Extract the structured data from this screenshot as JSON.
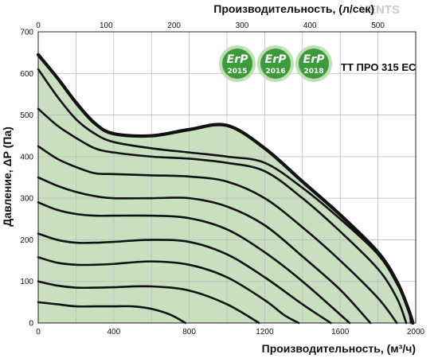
{
  "watermark": "VENTS",
  "model_label": "ТТ ПРО 315 ЕС",
  "badges": [
    {
      "text": "ErP",
      "year": "2015"
    },
    {
      "text": "ErP",
      "year": "2016"
    },
    {
      "text": "ErP",
      "year": "2018"
    }
  ],
  "colors": {
    "fill": "#c8dfc0",
    "curve": "#111111",
    "badge_green": "#3c9a3c",
    "badge_ring": "#bfe0b2",
    "grid": "#bdbdbd"
  },
  "chart_data": {
    "type": "line",
    "title": "",
    "xlabel": "Производительность, (м³/ч)",
    "ylabel": "Давление, ΔP (Па)",
    "x2label": "Производительность, (л/сек)",
    "xlim": [
      0,
      2000
    ],
    "ylim": [
      0,
      700
    ],
    "x2lim": [
      0,
      555.6
    ],
    "xticks": [
      0,
      400,
      800,
      1200,
      1600,
      2000
    ],
    "xminor": [
      200,
      600,
      1000,
      1400,
      1800
    ],
    "yticks": [
      0,
      100,
      200,
      300,
      400,
      500,
      600,
      700
    ],
    "x2ticks": [
      0,
      100,
      200,
      300,
      400,
      500
    ],
    "grid": true,
    "shaded_area": true,
    "series": [
      {
        "x": [
          0,
          100,
          200,
          300,
          400,
          600,
          800,
          1000,
          1200,
          1400,
          1600,
          1800,
          1900,
          1960,
          1985
        ],
        "y": [
          645,
          590,
          530,
          480,
          455,
          450,
          465,
          475,
          420,
          340,
          260,
          170,
          100,
          35,
          0
        ]
      },
      {
        "x": [
          0,
          100,
          200,
          300,
          400,
          600,
          800,
          1000,
          1200,
          1400,
          1600,
          1800,
          1900,
          1960,
          1975
        ],
        "y": [
          610,
          545,
          490,
          455,
          435,
          420,
          410,
          400,
          385,
          325,
          250,
          165,
          95,
          35,
          0
        ]
      },
      {
        "x": [
          0,
          100,
          200,
          300,
          400,
          600,
          800,
          1000,
          1200,
          1400,
          1600,
          1800,
          1900,
          1950
        ],
        "y": [
          515,
          475,
          445,
          420,
          410,
          400,
          395,
          385,
          365,
          300,
          220,
          130,
          60,
          0
        ]
      },
      {
        "x": [
          0,
          100,
          200,
          300,
          400,
          600,
          800,
          1000,
          1200,
          1400,
          1600,
          1800,
          1900
        ],
        "y": [
          425,
          395,
          375,
          360,
          358,
          355,
          352,
          340,
          300,
          230,
          150,
          60,
          0
        ]
      },
      {
        "x": [
          0,
          100,
          200,
          300,
          400,
          600,
          800,
          1000,
          1200,
          1400,
          1600,
          1760
        ],
        "y": [
          350,
          330,
          315,
          305,
          300,
          300,
          300,
          280,
          235,
          160,
          80,
          0
        ]
      },
      {
        "x": [
          0,
          100,
          200,
          300,
          400,
          600,
          800,
          1000,
          1200,
          1400,
          1650
        ],
        "y": [
          290,
          272,
          262,
          258,
          258,
          258,
          252,
          225,
          170,
          100,
          0
        ]
      },
      {
        "x": [
          0,
          100,
          200,
          300,
          400,
          600,
          800,
          1000,
          1200,
          1400,
          1550
        ],
        "y": [
          215,
          200,
          193,
          193,
          195,
          200,
          195,
          165,
          110,
          45,
          0
        ]
      },
      {
        "x": [
          0,
          100,
          200,
          300,
          400,
          600,
          800,
          1000,
          1200,
          1300,
          1380
        ],
        "y": [
          158,
          145,
          140,
          140,
          142,
          148,
          140,
          110,
          55,
          20,
          0
        ]
      },
      {
        "x": [
          0,
          100,
          200,
          300,
          400,
          600,
          800,
          1000,
          1170
        ],
        "y": [
          100,
          90,
          85,
          85,
          86,
          88,
          78,
          45,
          0
        ]
      },
      {
        "x": [
          0,
          100,
          200,
          300,
          400,
          500,
          600,
          700,
          780
        ],
        "y": [
          50,
          45,
          40,
          40,
          40,
          40,
          34,
          20,
          0
        ]
      }
    ]
  }
}
